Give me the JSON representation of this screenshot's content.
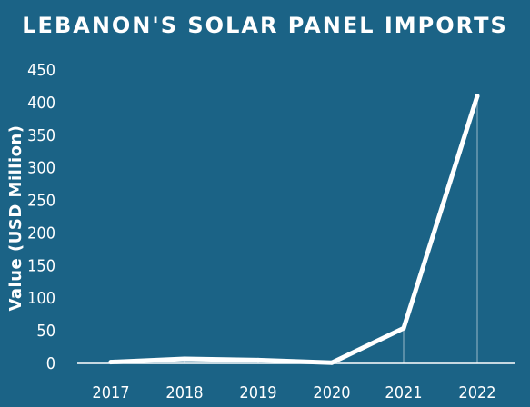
{
  "colors": {
    "background": "#1b6386",
    "line": "#ffffff",
    "text": "#ffffff"
  },
  "chart_data": {
    "type": "line",
    "title": "Lebanon's Solar Panel Imports",
    "xlabel": "",
    "ylabel": "Value (USD Million)",
    "categories": [
      "2017",
      "2018",
      "2019",
      "2020",
      "2021",
      "2022"
    ],
    "yticks": [
      "0",
      "50",
      "100",
      "150",
      "200",
      "250",
      "300",
      "350",
      "400",
      "450"
    ],
    "ylim": [
      0,
      450
    ],
    "grid": false,
    "series": [
      {
        "values": [
          2,
          7,
          5,
          1,
          54,
          410
        ]
      }
    ]
  }
}
